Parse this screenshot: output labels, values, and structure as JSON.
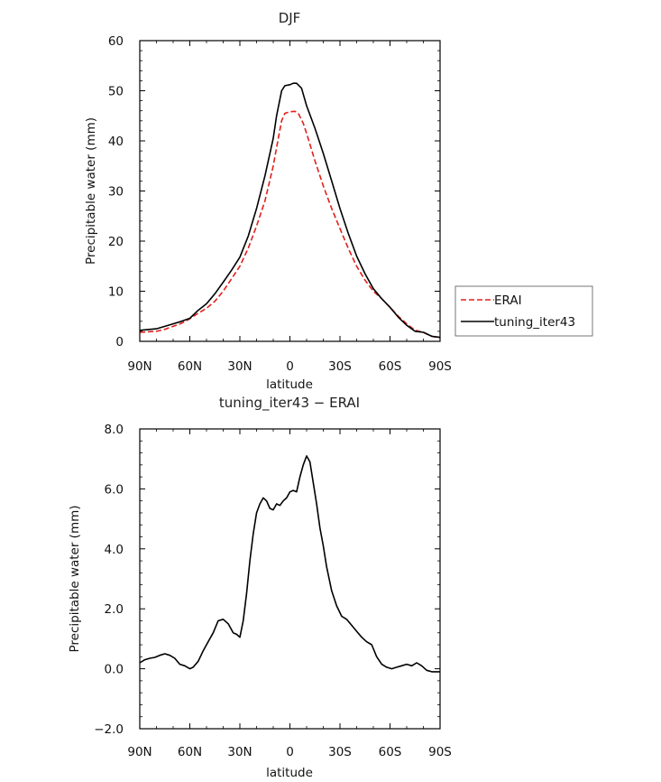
{
  "chart_data": [
    {
      "type": "line",
      "title": "DJF",
      "xlabel": "latitude",
      "ylabel": "Precipitable water (mm)",
      "xlim": [
        -90,
        90
      ],
      "ylim": [
        0,
        60
      ],
      "xticks": [
        -90,
        -60,
        -30,
        0,
        30,
        60,
        90
      ],
      "xtick_labels": [
        "90N",
        "60N",
        "30N",
        "0",
        "30S",
        "60S",
        "90S"
      ],
      "yticks": [
        0,
        10,
        20,
        30,
        40,
        50,
        60
      ],
      "ytick_labels": [
        "0",
        "10",
        "20",
        "30",
        "40",
        "50",
        "60"
      ],
      "legend_position": "outside-right",
      "series": [
        {
          "name": "ERAI",
          "color": "#e0201b",
          "dash": "dashed",
          "x": [
            -90,
            -80,
            -75,
            -70,
            -65,
            -60,
            -55,
            -50,
            -45,
            -40,
            -35,
            -30,
            -25,
            -20,
            -15,
            -10,
            -7,
            -5,
            -3,
            0,
            3,
            5,
            8,
            10,
            15,
            20,
            25,
            30,
            35,
            40,
            45,
            50,
            55,
            60,
            65,
            70,
            75,
            80,
            85,
            90
          ],
          "y": [
            1.8,
            2.0,
            2.4,
            3.0,
            3.6,
            4.5,
            5.6,
            6.6,
            8.0,
            10.0,
            12.5,
            15.0,
            18.6,
            23.0,
            28.0,
            35.0,
            40.5,
            44.0,
            45.5,
            45.8,
            45.9,
            45.5,
            43.5,
            41.5,
            36.0,
            31.0,
            26.5,
            22.5,
            18.5,
            15.0,
            12.2,
            10.0,
            8.5,
            6.8,
            5.0,
            3.5,
            2.2,
            1.8,
            1.0,
            0.7
          ]
        },
        {
          "name": "tuning_iter43",
          "color": "#000000",
          "dash": "solid",
          "x": [
            -90,
            -80,
            -75,
            -70,
            -65,
            -60,
            -55,
            -50,
            -45,
            -40,
            -35,
            -30,
            -25,
            -20,
            -15,
            -10,
            -8,
            -5,
            -3,
            0,
            2,
            4,
            7,
            10,
            15,
            20,
            25,
            30,
            35,
            40,
            45,
            50,
            55,
            60,
            65,
            70,
            75,
            80,
            85,
            90
          ],
          "y": [
            2.2,
            2.5,
            3.0,
            3.5,
            4.0,
            4.6,
            6.2,
            7.5,
            9.5,
            11.8,
            14.2,
            16.8,
            21.0,
            26.5,
            33.0,
            40.5,
            45.0,
            50.0,
            51.0,
            51.2,
            51.5,
            51.5,
            50.5,
            47.0,
            42.5,
            37.5,
            32.0,
            26.5,
            21.5,
            17.0,
            13.5,
            10.5,
            8.5,
            6.8,
            4.8,
            3.2,
            2.0,
            1.8,
            1.0,
            0.8
          ]
        }
      ]
    },
    {
      "type": "line",
      "title": "tuning_iter43 − ERAI",
      "xlabel": "latitude",
      "ylabel": "Precipitable water (mm)",
      "xlim": [
        -90,
        90
      ],
      "ylim": [
        -2,
        8
      ],
      "xticks": [
        -90,
        -60,
        -30,
        0,
        30,
        60,
        90
      ],
      "xtick_labels": [
        "90N",
        "60N",
        "30N",
        "0",
        "30S",
        "60S",
        "90S"
      ],
      "yticks": [
        -2,
        0,
        2,
        4,
        6,
        8
      ],
      "ytick_labels": [
        "−2.0",
        "0.0",
        "2.0",
        "4.0",
        "6.0",
        "8.0"
      ],
      "series": [
        {
          "color": "#000000",
          "dash": "solid",
          "x": [
            -90,
            -87,
            -84,
            -81,
            -78,
            -75,
            -72,
            -69,
            -66,
            -63,
            -60,
            -58,
            -55,
            -52,
            -49,
            -46,
            -43,
            -40,
            -37,
            -34,
            -32,
            -30,
            -28,
            -26,
            -24,
            -22,
            -20,
            -18,
            -16,
            -14,
            -12,
            -10,
            -8,
            -6,
            -4,
            -2,
            0,
            2,
            4,
            6,
            8,
            10,
            12,
            14,
            16,
            18,
            20,
            22,
            25,
            28,
            31,
            34,
            37,
            40,
            43,
            46,
            49,
            52,
            55,
            58,
            61,
            64,
            67,
            70,
            73,
            76,
            79,
            82,
            85,
            88,
            90
          ],
          "y": [
            0.2,
            0.3,
            0.35,
            0.38,
            0.45,
            0.5,
            0.45,
            0.35,
            0.15,
            0.1,
            0.0,
            0.05,
            0.25,
            0.6,
            0.9,
            1.2,
            1.6,
            1.65,
            1.5,
            1.2,
            1.15,
            1.05,
            1.6,
            2.5,
            3.6,
            4.5,
            5.2,
            5.5,
            5.7,
            5.6,
            5.35,
            5.3,
            5.5,
            5.45,
            5.6,
            5.7,
            5.9,
            5.95,
            5.9,
            6.4,
            6.8,
            7.1,
            6.9,
            6.2,
            5.5,
            4.7,
            4.1,
            3.4,
            2.6,
            2.1,
            1.75,
            1.65,
            1.45,
            1.25,
            1.05,
            0.9,
            0.8,
            0.4,
            0.15,
            0.05,
            0.0,
            0.05,
            0.1,
            0.15,
            0.1,
            0.2,
            0.1,
            -0.05,
            -0.1,
            -0.1,
            -0.1
          ]
        }
      ]
    }
  ],
  "legend": {
    "entries": [
      "ERAI",
      "tuning_iter43"
    ]
  }
}
